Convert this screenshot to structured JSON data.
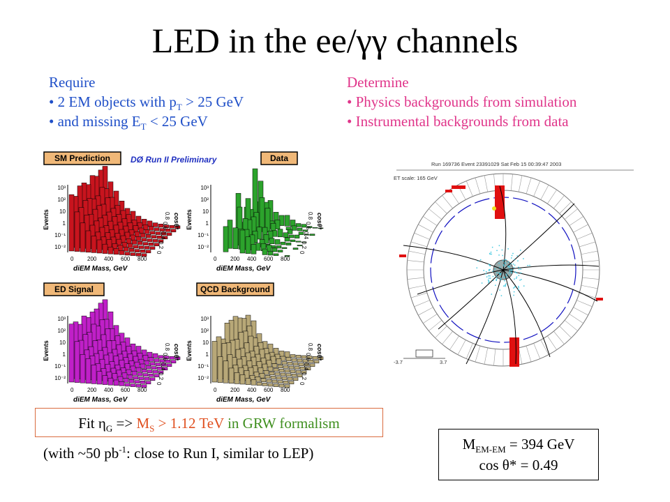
{
  "title": {
    "prefix": "LED in the ee/",
    "gg": "γγ",
    "suffix": " channels"
  },
  "require": {
    "heading": "Require",
    "b1_pre": "• 2 EM objects with p",
    "b1_sub": "T",
    "b1_post": " > 25 GeV",
    "b2_pre": "• and missing E",
    "b2_sub": "T",
    "b2_post": " < 25 GeV"
  },
  "determine": {
    "heading": "Determine",
    "b1": "• Physics backgrounds from simulation",
    "b2": "• Instrumental backgrounds from data"
  },
  "plots": {
    "header_run": "DØ Run II Preliminary",
    "panels": [
      {
        "label": "SM Prediction",
        "color": "#c8141e"
      },
      {
        "label": "Data",
        "color": "#2ca32c"
      },
      {
        "label": "ED Signal",
        "color": "#c020c8"
      },
      {
        "label": "QCD Background",
        "color": "#b8a878"
      }
    ],
    "axis_y": "Events",
    "axis_x": "diEM Mass, GeV",
    "axis_z": "cosθ*",
    "y_ticks": [
      "10³",
      "10²",
      "10",
      "1",
      "10⁻¹",
      "10⁻²"
    ],
    "x_ticks": [
      "0",
      "200",
      "400",
      "600",
      "800"
    ],
    "z_ticks": [
      "0",
      "0.2",
      "0.4",
      "0.6",
      "0.8"
    ]
  },
  "event": {
    "header": "Run 169736 Event 23391029 Sat Feb 15 00:39:47 2003",
    "scale": "ET scale: 165 GeV",
    "left_eta": "-3.7",
    "right_eta": "3.7",
    "colors": {
      "tower": "#e01010",
      "track": "#000000",
      "hits": "#40c8e0",
      "ring": "#1010c0"
    }
  },
  "fit": {
    "pre": "Fit η",
    "sub": "G",
    "arrow": " => ",
    "ms": "M",
    "ms_sub": "S",
    "ms_val": " > 1.12 TeV",
    "tail": " in GRW formalism"
  },
  "note": {
    "pre": "(with ~50 pb",
    "sup": "-1",
    "post": ": close to Run I, similar to LEP)"
  },
  "mass": {
    "m": "M",
    "m_sub": "EM-EM",
    "m_val": " = 394 GeV",
    "cos": "cos θ* = 0.49"
  }
}
